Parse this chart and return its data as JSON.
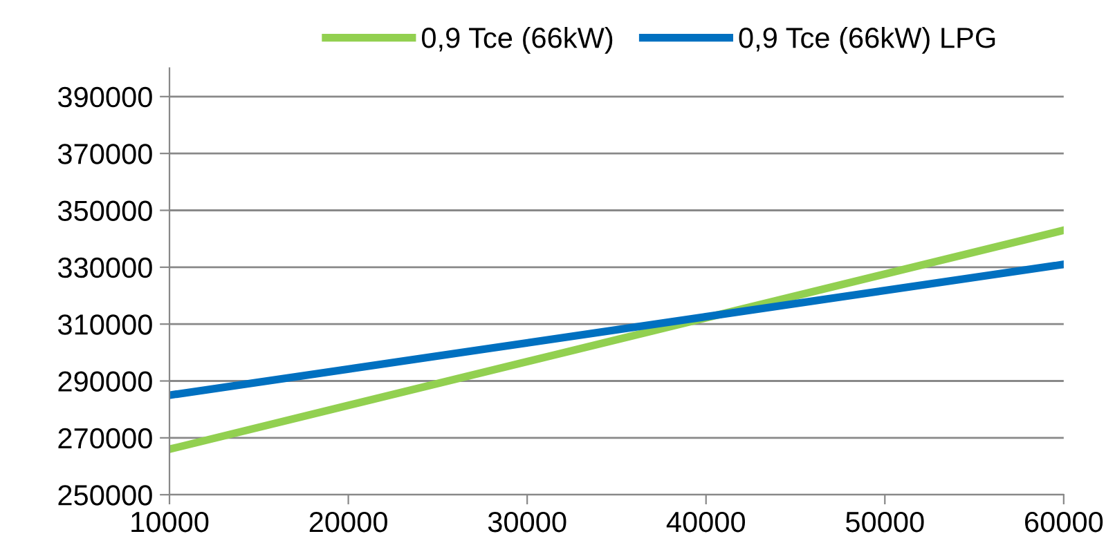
{
  "chart_data": {
    "type": "line",
    "x": [
      10000,
      60000
    ],
    "series": [
      {
        "name": "0,9 Tce (66kW)",
        "color": "#92d050",
        "values": [
          266000,
          343000
        ]
      },
      {
        "name": "0,9 Tce (66kW) LPG",
        "color": "#0070c0",
        "values": [
          285000,
          331000
        ]
      }
    ],
    "xlim": [
      10000,
      60000
    ],
    "xticks": [
      10000,
      20000,
      30000,
      40000,
      50000,
      60000
    ],
    "ylim": [
      250000,
      400000
    ],
    "yticks": [
      250000,
      270000,
      290000,
      310000,
      330000,
      350000,
      370000,
      390000
    ],
    "grid": "y",
    "legend": "top",
    "marker": "none",
    "line_style": "solid"
  }
}
